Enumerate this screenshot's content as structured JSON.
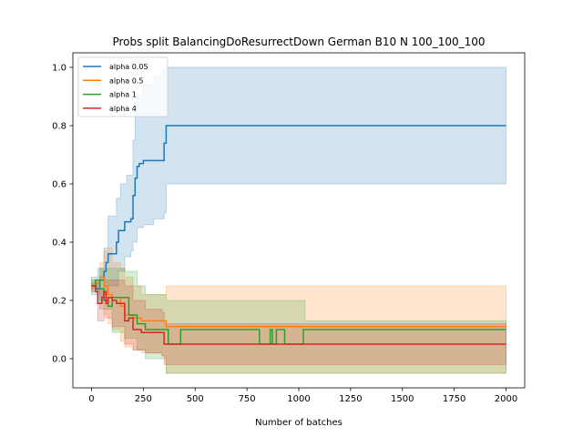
{
  "chart_data": {
    "type": "line",
    "title": "Probs split BalancingDoResurrectDown German B10 N 100_100_100",
    "xlabel": "Number of batches",
    "ylabel": "",
    "xlim": [
      -90,
      2090
    ],
    "ylim": [
      -0.1,
      1.05
    ],
    "xticks": [
      0,
      250,
      500,
      750,
      1000,
      1250,
      1500,
      1750,
      2000
    ],
    "yticks": [
      0.0,
      0.2,
      0.4,
      0.6,
      0.8,
      1.0
    ],
    "grid": false,
    "legend_position": "top-left",
    "series": [
      {
        "name": "alpha 0.05",
        "color": "#1f77b4",
        "points": [
          [
            0,
            0.25
          ],
          [
            20,
            0.24
          ],
          [
            40,
            0.27
          ],
          [
            60,
            0.3
          ],
          [
            70,
            0.33
          ],
          [
            80,
            0.36
          ],
          [
            110,
            0.36
          ],
          [
            120,
            0.4
          ],
          [
            130,
            0.44
          ],
          [
            160,
            0.47
          ],
          [
            190,
            0.48
          ],
          [
            200,
            0.56
          ],
          [
            210,
            0.62
          ],
          [
            220,
            0.66
          ],
          [
            230,
            0.67
          ],
          [
            250,
            0.68
          ],
          [
            310,
            0.68
          ],
          [
            340,
            0.68
          ],
          [
            350,
            0.74
          ],
          [
            360,
            0.8
          ],
          [
            2000,
            0.8
          ]
        ],
        "band_upper": [
          [
            0,
            0.28
          ],
          [
            30,
            0.31
          ],
          [
            60,
            0.38
          ],
          [
            80,
            0.49
          ],
          [
            110,
            0.49
          ],
          [
            120,
            0.55
          ],
          [
            140,
            0.6
          ],
          [
            170,
            0.63
          ],
          [
            200,
            0.75
          ],
          [
            210,
            0.85
          ],
          [
            220,
            0.9
          ],
          [
            250,
            0.94
          ],
          [
            300,
            0.97
          ],
          [
            340,
            0.99
          ],
          [
            360,
            1.0
          ],
          [
            2000,
            1.0
          ]
        ],
        "band_lower": [
          [
            0,
            0.22
          ],
          [
            30,
            0.2
          ],
          [
            60,
            0.22
          ],
          [
            80,
            0.25
          ],
          [
            110,
            0.25
          ],
          [
            130,
            0.3
          ],
          [
            160,
            0.35
          ],
          [
            190,
            0.37
          ],
          [
            200,
            0.4
          ],
          [
            220,
            0.45
          ],
          [
            250,
            0.46
          ],
          [
            300,
            0.48
          ],
          [
            340,
            0.48
          ],
          [
            350,
            0.5
          ],
          [
            360,
            0.6
          ],
          [
            2000,
            0.6
          ]
        ]
      },
      {
        "name": "alpha 0.5",
        "color": "#ff7f0e",
        "points": [
          [
            0,
            0.25
          ],
          [
            20,
            0.26
          ],
          [
            40,
            0.28
          ],
          [
            60,
            0.25
          ],
          [
            80,
            0.22
          ],
          [
            100,
            0.21
          ],
          [
            140,
            0.18
          ],
          [
            160,
            0.15
          ],
          [
            200,
            0.14
          ],
          [
            240,
            0.13
          ],
          [
            300,
            0.13
          ],
          [
            340,
            0.13
          ],
          [
            360,
            0.11
          ],
          [
            2000,
            0.11
          ]
        ],
        "band_upper": [
          [
            0,
            0.27
          ],
          [
            40,
            0.33
          ],
          [
            60,
            0.37
          ],
          [
            80,
            0.38
          ],
          [
            100,
            0.33
          ],
          [
            140,
            0.31
          ],
          [
            160,
            0.28
          ],
          [
            200,
            0.25
          ],
          [
            240,
            0.22
          ],
          [
            300,
            0.22
          ],
          [
            340,
            0.22
          ],
          [
            360,
            0.25
          ],
          [
            2000,
            0.25
          ]
        ],
        "band_lower": [
          [
            0,
            0.23
          ],
          [
            40,
            0.21
          ],
          [
            60,
            0.15
          ],
          [
            80,
            0.12
          ],
          [
            100,
            0.1
          ],
          [
            140,
            0.06
          ],
          [
            160,
            0.04
          ],
          [
            200,
            0.03
          ],
          [
            240,
            0.02
          ],
          [
            300,
            0.02
          ],
          [
            340,
            0.01
          ],
          [
            360,
            -0.05
          ],
          [
            2000,
            -0.05
          ]
        ]
      },
      {
        "name": "alpha 1",
        "color": "#2ca02c",
        "points": [
          [
            0,
            0.25
          ],
          [
            20,
            0.27
          ],
          [
            40,
            0.24
          ],
          [
            60,
            0.2
          ],
          [
            80,
            0.18
          ],
          [
            100,
            0.21
          ],
          [
            160,
            0.21
          ],
          [
            180,
            0.15
          ],
          [
            220,
            0.12
          ],
          [
            260,
            0.1
          ],
          [
            360,
            0.1
          ],
          [
            370,
            0.05
          ],
          [
            420,
            0.05
          ],
          [
            430,
            0.1
          ],
          [
            800,
            0.1
          ],
          [
            810,
            0.05
          ],
          [
            860,
            0.05
          ],
          [
            862,
            0.1
          ],
          [
            870,
            0.1
          ],
          [
            872,
            0.05
          ],
          [
            890,
            0.05
          ],
          [
            892,
            0.1
          ],
          [
            930,
            0.1
          ],
          [
            932,
            0.05
          ],
          [
            1020,
            0.05
          ],
          [
            1022,
            0.1
          ],
          [
            2000,
            0.1
          ]
        ],
        "band_upper": [
          [
            0,
            0.27
          ],
          [
            40,
            0.31
          ],
          [
            100,
            0.31
          ],
          [
            160,
            0.3
          ],
          [
            220,
            0.25
          ],
          [
            260,
            0.22
          ],
          [
            360,
            0.2
          ],
          [
            420,
            0.2
          ],
          [
            800,
            0.2
          ],
          [
            1020,
            0.2
          ],
          [
            1030,
            0.13
          ],
          [
            2000,
            0.13
          ]
        ],
        "band_lower": [
          [
            0,
            0.23
          ],
          [
            40,
            0.17
          ],
          [
            100,
            0.09
          ],
          [
            160,
            0.07
          ],
          [
            220,
            0.03
          ],
          [
            260,
            0.0
          ],
          [
            360,
            -0.05
          ],
          [
            800,
            -0.05
          ],
          [
            2000,
            -0.05
          ]
        ]
      },
      {
        "name": "alpha 4",
        "color": "#d62728",
        "points": [
          [
            0,
            0.25
          ],
          [
            20,
            0.23
          ],
          [
            30,
            0.19
          ],
          [
            50,
            0.21
          ],
          [
            60,
            0.23
          ],
          [
            70,
            0.19
          ],
          [
            80,
            0.21
          ],
          [
            100,
            0.2
          ],
          [
            120,
            0.19
          ],
          [
            140,
            0.19
          ],
          [
            160,
            0.13
          ],
          [
            180,
            0.14
          ],
          [
            200,
            0.1
          ],
          [
            240,
            0.09
          ],
          [
            300,
            0.09
          ],
          [
            340,
            0.09
          ],
          [
            350,
            0.05
          ],
          [
            2000,
            0.05
          ]
        ],
        "band_upper": [
          [
            0,
            0.26
          ],
          [
            30,
            0.24
          ],
          [
            60,
            0.27
          ],
          [
            100,
            0.27
          ],
          [
            160,
            0.25
          ],
          [
            200,
            0.2
          ],
          [
            260,
            0.17
          ],
          [
            340,
            0.16
          ],
          [
            350,
            0.12
          ],
          [
            2000,
            0.12
          ]
        ],
        "band_lower": [
          [
            0,
            0.24
          ],
          [
            30,
            0.13
          ],
          [
            60,
            0.14
          ],
          [
            100,
            0.11
          ],
          [
            160,
            0.05
          ],
          [
            200,
            0.03
          ],
          [
            260,
            0.02
          ],
          [
            340,
            0.01
          ],
          [
            350,
            -0.02
          ],
          [
            2000,
            -0.02
          ]
        ]
      }
    ]
  }
}
